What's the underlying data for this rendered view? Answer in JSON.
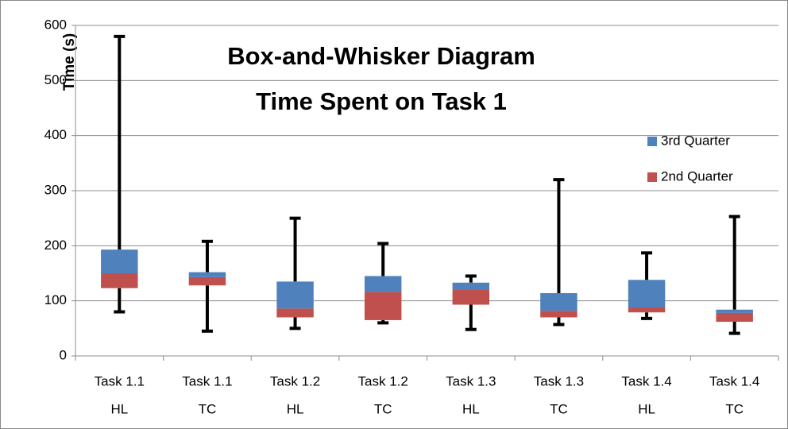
{
  "chart_data": {
    "type": "box",
    "title": [
      "Box-and-Whisker Diagram",
      "Time Spent on Task 1"
    ],
    "y_label": "Time (s)",
    "categories": [
      [
        "Task 1.1",
        "HL"
      ],
      [
        "Task 1.1",
        "TC"
      ],
      [
        "Task 1.2",
        "HL"
      ],
      [
        "Task 1.2",
        "TC"
      ],
      [
        "Task 1.3",
        "HL"
      ],
      [
        "Task 1.3",
        "TC"
      ],
      [
        "Task 1.4",
        "HL"
      ],
      [
        "Task 1.4",
        "TC"
      ]
    ],
    "min": [
      80,
      45,
      50,
      60,
      48,
      57,
      68,
      41
    ],
    "q1": [
      123,
      128,
      70,
      65,
      93,
      70,
      79,
      62
    ],
    "median": [
      150,
      143,
      86,
      116,
      121,
      82,
      88,
      78
    ],
    "q3": [
      193,
      152,
      135,
      145,
      133,
      114,
      138,
      84
    ],
    "max": [
      580,
      208,
      250,
      204,
      145,
      320,
      187,
      253
    ],
    "series": [
      {
        "name": "3rd Quarter",
        "color": "#4f81bd"
      },
      {
        "name": "2nd Quarter",
        "color": "#c0504d"
      }
    ],
    "ylim": [
      0,
      600
    ],
    "yticks": [
      0,
      100,
      200,
      300,
      400,
      500,
      600
    ],
    "grid": true,
    "legend": "right"
  }
}
